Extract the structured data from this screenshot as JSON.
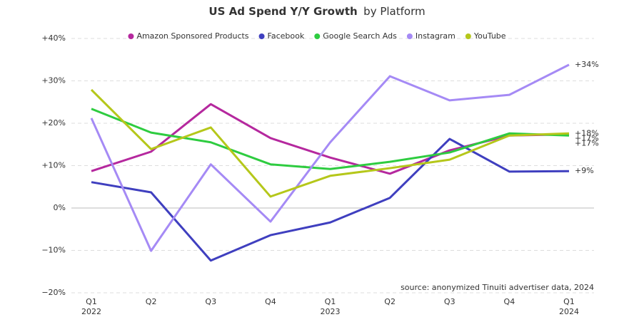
{
  "chart_data": {
    "type": "line",
    "title": "US Ad Spend Y/Y Growth",
    "subtitle": "by Platform",
    "source": "source: anonymized Tinuiti advertiser data, 2024",
    "categories": [
      "Q1",
      "Q2",
      "Q3",
      "Q4",
      "Q1",
      "Q2",
      "Q3",
      "Q4",
      "Q1"
    ],
    "category_years": [
      "2022",
      null,
      null,
      null,
      "2023",
      null,
      null,
      null,
      "2024"
    ],
    "ylim": [
      -20,
      40
    ],
    "yticks": [
      {
        "value": 40,
        "label": "+40%"
      },
      {
        "value": 30,
        "label": "+30%"
      },
      {
        "value": 20,
        "label": "+20%"
      },
      {
        "value": 10,
        "label": "+10%"
      },
      {
        "value": 0,
        "label": "0%"
      },
      {
        "value": -10,
        "label": "−10%"
      },
      {
        "value": -20,
        "label": "−20%"
      }
    ],
    "grid": true,
    "series": [
      {
        "name": "Amazon Sponsored Products",
        "color": "#b5289e",
        "values": [
          8.7,
          13.3,
          24.5,
          16.5,
          11.9,
          8.1,
          13.6,
          17.1,
          17.4
        ],
        "value_labels": [
          null,
          null,
          null,
          null,
          null,
          null,
          null,
          null,
          "+17%"
        ]
      },
      {
        "name": "Facebook",
        "color": "#3f3fbf",
        "values": [
          6.1,
          3.7,
          -12.4,
          -6.4,
          -3.4,
          2.4,
          16.3,
          8.6,
          8.7
        ],
        "value_labels": [
          null,
          null,
          null,
          null,
          null,
          null,
          null,
          null,
          "+9%"
        ]
      },
      {
        "name": "Google Search Ads",
        "color": "#2ecc40",
        "values": [
          23.4,
          17.8,
          15.5,
          10.3,
          9.2,
          10.9,
          13.1,
          17.6,
          17.1
        ],
        "value_labels": [
          null,
          null,
          null,
          null,
          null,
          null,
          null,
          null,
          "+17%"
        ]
      },
      {
        "name": "Instagram",
        "color": "#a58af5",
        "values": [
          21.2,
          -10.1,
          10.3,
          -3.2,
          15.5,
          31.1,
          25.4,
          26.7,
          33.8
        ],
        "value_labels": [
          null,
          null,
          null,
          null,
          null,
          null,
          null,
          null,
          "+34%"
        ]
      },
      {
        "name": "YouTube",
        "color": "#b5c71a",
        "values": [
          27.9,
          13.9,
          19.0,
          2.7,
          7.6,
          9.4,
          11.4,
          17.1,
          17.6
        ],
        "value_labels": [
          null,
          null,
          null,
          null,
          null,
          null,
          null,
          null,
          "+18%"
        ]
      }
    ]
  }
}
